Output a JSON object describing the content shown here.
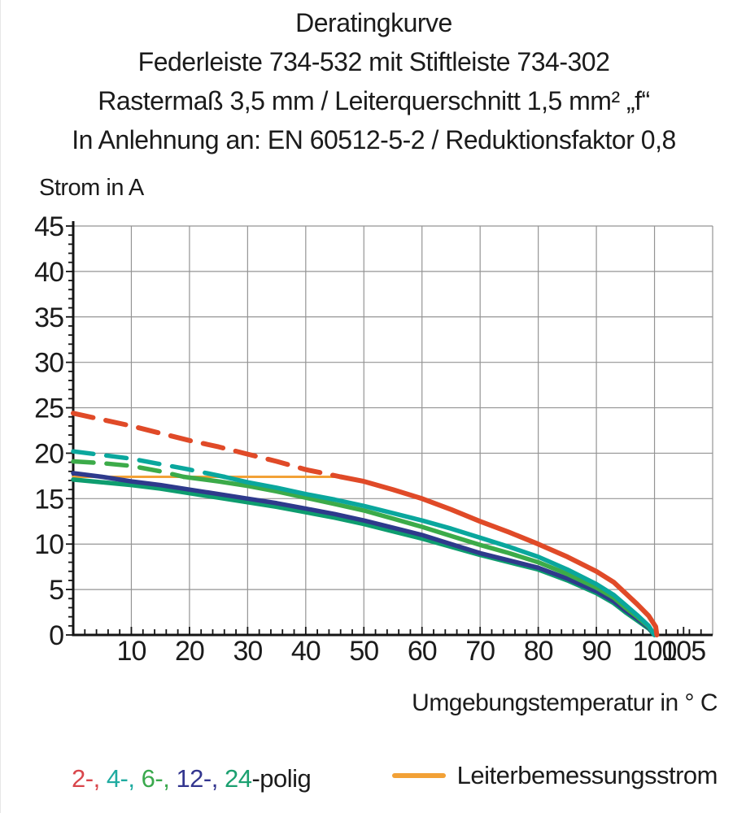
{
  "title": {
    "line1": "Deratingkurve",
    "line2": "Federleiste 734-532 mit Stiftleiste 734-302",
    "line3": "Rastermaß 3,5 mm / Leiterquerschnitt 1,5 mm² „f“",
    "line4": "In Anlehnung an: EN 60512-5-2 / Reduktionsfaktor 0,8"
  },
  "chart_data": {
    "type": "line",
    "title": "Deratingkurve",
    "xlabel": "Umgebungstemperatur in ° C",
    "ylabel": "Strom in A",
    "xlim": [
      0,
      110
    ],
    "ylim": [
      0,
      45
    ],
    "x_gridlines": [
      10,
      20,
      30,
      40,
      50,
      60,
      70,
      80,
      90,
      100,
      110
    ],
    "y_gridlines": [
      5,
      10,
      15,
      20,
      25,
      30,
      35,
      40,
      45
    ],
    "x_label_ticks": [
      10,
      20,
      30,
      40,
      50,
      60,
      70,
      80,
      90,
      100,
      105
    ],
    "y_label_ticks": [
      0,
      5,
      10,
      15,
      20,
      25,
      30,
      35,
      40,
      45
    ],
    "x_minor_step": 2,
    "y_minor_step": 1,
    "grid": true,
    "legend_position": "bottom",
    "series": [
      {
        "name": "2-polig",
        "color": "#E04A28",
        "width": 6,
        "dash_until_x": 46,
        "points": [
          [
            0,
            24.4
          ],
          [
            5,
            23.7
          ],
          [
            10,
            23.0
          ],
          [
            15,
            22.2
          ],
          [
            20,
            21.4
          ],
          [
            25,
            20.7
          ],
          [
            30,
            19.9
          ],
          [
            35,
            19.1
          ],
          [
            40,
            18.2
          ],
          [
            46,
            17.4
          ],
          [
            50,
            16.9
          ],
          [
            55,
            16.0
          ],
          [
            60,
            15.0
          ],
          [
            65,
            13.8
          ],
          [
            70,
            12.5
          ],
          [
            75,
            11.3
          ],
          [
            80,
            10.0
          ],
          [
            85,
            8.6
          ],
          [
            90,
            7.0
          ],
          [
            93,
            5.8
          ],
          [
            95,
            4.6
          ],
          [
            97,
            3.4
          ],
          [
            99,
            2.1
          ],
          [
            100.2,
            0.9
          ],
          [
            100.4,
            0
          ]
        ]
      },
      {
        "name": "4-polig",
        "color": "#0AA79D",
        "width": 5.5,
        "dash_until_x": 26,
        "points": [
          [
            0,
            20.2
          ],
          [
            5,
            19.8
          ],
          [
            10,
            19.4
          ],
          [
            15,
            18.8
          ],
          [
            20,
            18.2
          ],
          [
            26,
            17.4
          ],
          [
            30,
            16.8
          ],
          [
            35,
            16.2
          ],
          [
            40,
            15.5
          ],
          [
            45,
            14.9
          ],
          [
            50,
            14.2
          ],
          [
            55,
            13.4
          ],
          [
            60,
            12.6
          ],
          [
            65,
            11.7
          ],
          [
            70,
            10.7
          ],
          [
            75,
            9.7
          ],
          [
            80,
            8.6
          ],
          [
            85,
            7.2
          ],
          [
            90,
            5.6
          ],
          [
            93,
            4.4
          ],
          [
            95,
            3.3
          ],
          [
            97,
            2.2
          ],
          [
            99,
            1.0
          ],
          [
            100,
            0
          ]
        ]
      },
      {
        "name": "6-polig",
        "color": "#3CAB49",
        "width": 5.5,
        "dash_until_x": 19,
        "points": [
          [
            0,
            19.1
          ],
          [
            5,
            18.9
          ],
          [
            10,
            18.6
          ],
          [
            15,
            18.0
          ],
          [
            19,
            17.4
          ],
          [
            25,
            16.9
          ],
          [
            30,
            16.4
          ],
          [
            35,
            15.8
          ],
          [
            40,
            15.1
          ],
          [
            45,
            14.4
          ],
          [
            50,
            13.7
          ],
          [
            55,
            12.8
          ],
          [
            60,
            11.9
          ],
          [
            65,
            10.9
          ],
          [
            70,
            9.9
          ],
          [
            75,
            9.0
          ],
          [
            80,
            8.0
          ],
          [
            85,
            6.7
          ],
          [
            90,
            5.2
          ],
          [
            93,
            4.1
          ],
          [
            95,
            3.0
          ],
          [
            97,
            2.0
          ],
          [
            99,
            0.9
          ],
          [
            100,
            0
          ]
        ]
      },
      {
        "name": "12-polig",
        "color": "#2E3A8C",
        "width": 5.5,
        "dash_until_x": null,
        "points": [
          [
            0,
            17.8
          ],
          [
            5,
            17.4
          ],
          [
            10,
            16.9
          ],
          [
            15,
            16.5
          ],
          [
            20,
            16.0
          ],
          [
            25,
            15.5
          ],
          [
            30,
            15.0
          ],
          [
            35,
            14.5
          ],
          [
            40,
            13.9
          ],
          [
            45,
            13.3
          ],
          [
            50,
            12.6
          ],
          [
            55,
            11.8
          ],
          [
            60,
            11.0
          ],
          [
            65,
            10.0
          ],
          [
            70,
            9.0
          ],
          [
            75,
            8.2
          ],
          [
            80,
            7.4
          ],
          [
            85,
            6.2
          ],
          [
            90,
            4.8
          ],
          [
            93,
            3.7
          ],
          [
            95,
            2.7
          ],
          [
            97,
            1.8
          ],
          [
            99,
            0.8
          ],
          [
            100,
            0
          ]
        ]
      },
      {
        "name": "24-polig",
        "color": "#0E9D6F",
        "width": 5.5,
        "dash_until_x": null,
        "points": [
          [
            0,
            17.1
          ],
          [
            5,
            16.8
          ],
          [
            10,
            16.5
          ],
          [
            15,
            16.1
          ],
          [
            20,
            15.6
          ],
          [
            25,
            15.1
          ],
          [
            30,
            14.6
          ],
          [
            35,
            14.1
          ],
          [
            40,
            13.5
          ],
          [
            45,
            12.9
          ],
          [
            50,
            12.2
          ],
          [
            55,
            11.4
          ],
          [
            60,
            10.6
          ],
          [
            65,
            9.7
          ],
          [
            70,
            8.8
          ],
          [
            75,
            8.0
          ],
          [
            80,
            7.2
          ],
          [
            85,
            6.0
          ],
          [
            90,
            4.6
          ],
          [
            93,
            3.5
          ],
          [
            95,
            2.5
          ],
          [
            97,
            1.6
          ],
          [
            99,
            0.7
          ],
          [
            100,
            0
          ]
        ]
      },
      {
        "name": "Leiterbemessungsstrom",
        "color": "#F2A136",
        "width": 3,
        "dash_until_x": null,
        "points": [
          [
            0,
            17.4
          ],
          [
            46,
            17.4
          ]
        ]
      }
    ]
  },
  "legend": {
    "items": [
      {
        "label": "2-,",
        "color": "#D9464B"
      },
      {
        "label": "4-,",
        "color": "#1FABA0"
      },
      {
        "label": "6-,",
        "color": "#3AA94D"
      },
      {
        "label": "12-,",
        "color": "#33368F"
      },
      {
        "label": "24",
        "color": "#1BA070"
      }
    ],
    "suffix": "-polig",
    "rated_label": "Leiterbemessungsstrom",
    "rated_color": "#F2A136"
  }
}
